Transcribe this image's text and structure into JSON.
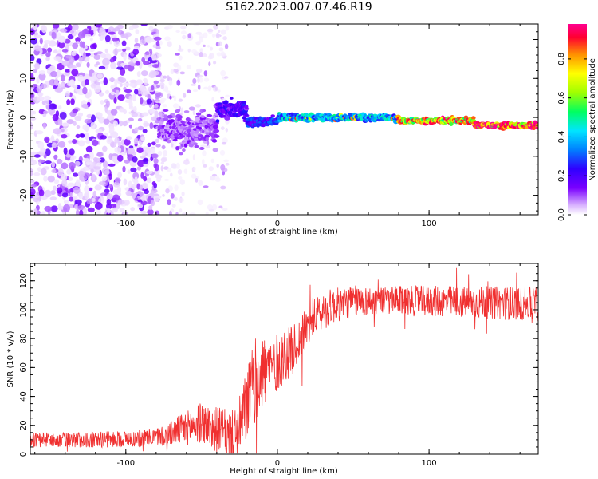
{
  "title": "S162.2023.007.07.46.R19",
  "colors": {
    "snr_line": "#f03030",
    "axis": "#000000",
    "colormap": [
      "#ffffff",
      "#d9b3ff",
      "#7a00ff",
      "#2f00ff",
      "#0080ff",
      "#00e5ff",
      "#00ff60",
      "#a0ff00",
      "#ffff00",
      "#ff9000",
      "#ff0030",
      "#ff0090"
    ]
  },
  "chart_data": [
    {
      "type": "heatmap",
      "title": "S162.2023.007.07.46.R19",
      "xlabel": "Height of straight line (km)",
      "ylabel": "Frequency (Hz)",
      "xlim": [
        -163,
        172
      ],
      "ylim": [
        -25,
        24
      ],
      "x_ticks": [
        -100,
        0,
        100
      ],
      "y_ticks": [
        -20,
        -10,
        0,
        10,
        20
      ],
      "colorbar": {
        "label": "Normalized spectral amplitude",
        "range": [
          0.0,
          0.98
        ],
        "ticks": [
          0.0,
          0.2,
          0.4,
          0.6,
          0.8
        ]
      },
      "segments": [
        {
          "x_range": [
            -163,
            -78
          ],
          "description_class": "noise",
          "amplitude": 0.1,
          "freq_spread": 25
        },
        {
          "x_range": [
            -78,
            -40
          ],
          "description_class": "weak",
          "amplitude": 0.15,
          "freq_center": -3,
          "freq_spread": 6
        },
        {
          "x_range": [
            -40,
            -20
          ],
          "description_class": "onset",
          "amplitude": 0.25,
          "freq_center": 2,
          "freq_spread": 3
        },
        {
          "x_range": [
            -20,
            0
          ],
          "amplitude": 0.3,
          "freq_center": -1,
          "freq_spread": 1.5
        },
        {
          "x_range": [
            0,
            80
          ],
          "amplitude": 0.45,
          "freq_center": 0,
          "freq_spread": 1.2
        },
        {
          "x_range": [
            80,
            130
          ],
          "amplitude": 0.8,
          "freq_center": -0.8,
          "freq_spread": 1.0
        },
        {
          "x_range": [
            130,
            172
          ],
          "amplitude": 0.95,
          "freq_center": -2,
          "freq_spread": 1.0
        }
      ]
    },
    {
      "type": "line",
      "xlabel": "Height of straight line (km)",
      "ylabel": "SNR (10 * v/v)",
      "xlim": [
        -163,
        172
      ],
      "ylim": [
        0,
        132
      ],
      "x_ticks": [
        -100,
        0,
        100
      ],
      "y_ticks": [
        0,
        20,
        40,
        60,
        80,
        100,
        120
      ],
      "series": [
        {
          "trend": [
            [
              -163,
              10
            ],
            [
              -120,
              10
            ],
            [
              -90,
              11
            ],
            [
              -75,
              13
            ],
            [
              -60,
              18
            ],
            [
              -50,
              22
            ],
            [
              -40,
              17
            ],
            [
              -30,
              12
            ],
            [
              -25,
              18
            ],
            [
              -20,
              35
            ],
            [
              -15,
              50
            ],
            [
              -10,
              57
            ],
            [
              -5,
              60
            ],
            [
              0,
              63
            ],
            [
              5,
              68
            ],
            [
              10,
              72
            ],
            [
              15,
              80
            ],
            [
              20,
              88
            ],
            [
              25,
              95
            ],
            [
              35,
              102
            ],
            [
              50,
              106
            ],
            [
              100,
              106
            ],
            [
              172,
              104
            ]
          ],
          "noise_amplitude": [
            [
              -163,
              5
            ],
            [
              -80,
              6
            ],
            [
              -60,
              12
            ],
            [
              -30,
              18
            ],
            [
              -15,
              30
            ],
            [
              0,
              20
            ],
            [
              20,
              14
            ],
            [
              60,
              10
            ],
            [
              172,
              12
            ]
          ]
        }
      ]
    }
  ]
}
